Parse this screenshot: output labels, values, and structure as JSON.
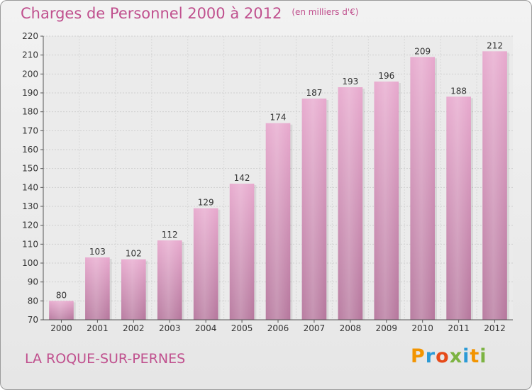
{
  "header": {
    "title": "Charges de Personnel 2000 à 2012",
    "unit": "(en milliers d'€)"
  },
  "footer": {
    "place": "LA ROQUE-SUR-PERNES",
    "logo_text": "Proxiti",
    "logo_colors": [
      "#f29400",
      "#2b9ad6",
      "#e64a19",
      "#7cb342",
      "#2b9ad6",
      "#f29400",
      "#7cb342"
    ]
  },
  "colors": {
    "accent": "#c0508e",
    "bar_top": "#e7a8cd",
    "bar_bottom": "#b5769c"
  },
  "chart_data": {
    "type": "bar",
    "categories": [
      "2000",
      "2001",
      "2002",
      "2003",
      "2004",
      "2005",
      "2006",
      "2007",
      "2008",
      "2009",
      "2010",
      "2011",
      "2012"
    ],
    "values": [
      80,
      103,
      102,
      112,
      129,
      142,
      174,
      187,
      193,
      196,
      209,
      188,
      212
    ],
    "ylim": [
      70,
      220
    ],
    "yticks": [
      70,
      80,
      90,
      100,
      110,
      120,
      130,
      140,
      150,
      160,
      170,
      180,
      190,
      200,
      210,
      220
    ],
    "grid": true
  }
}
